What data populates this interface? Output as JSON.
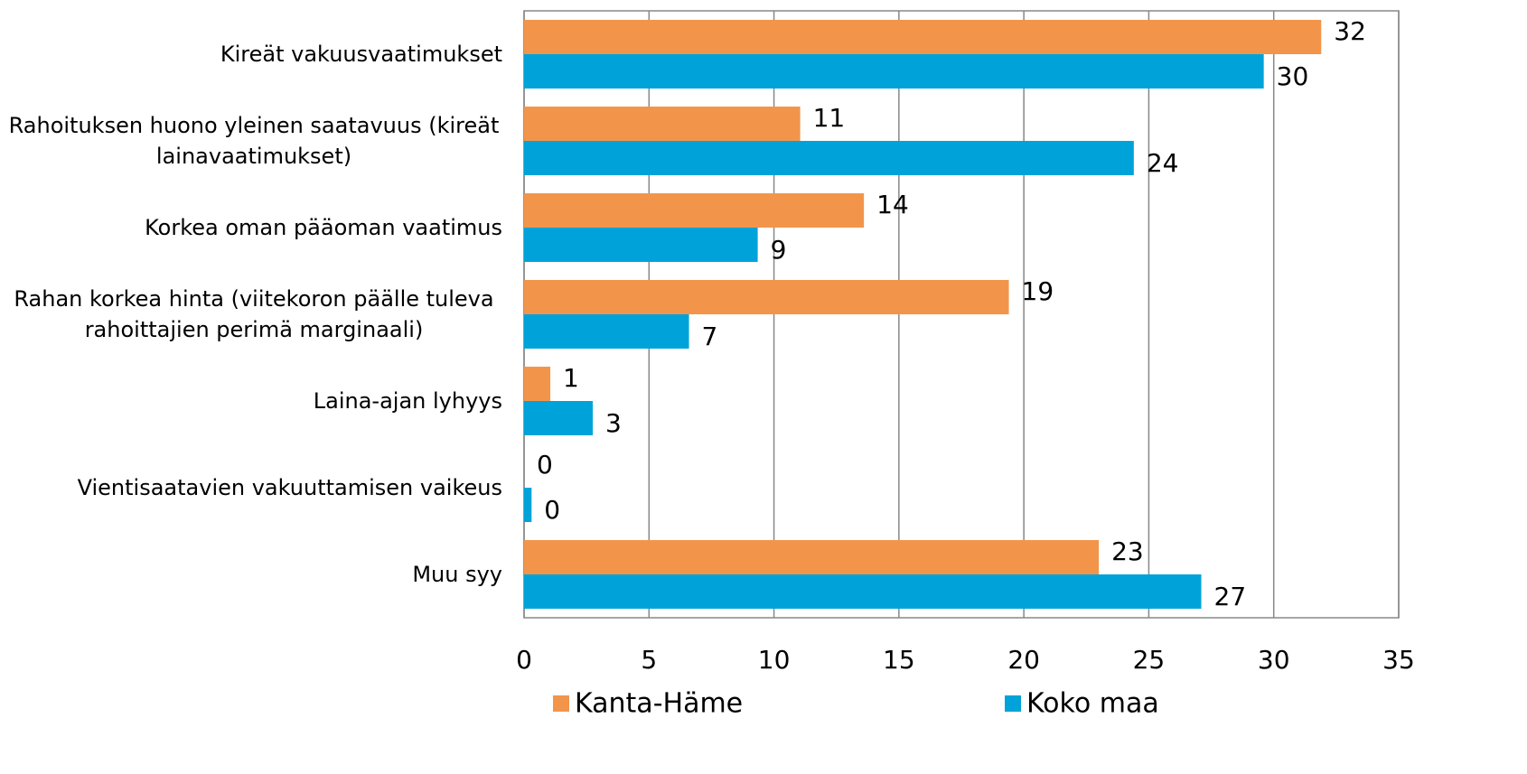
{
  "chart_data": {
    "type": "barh",
    "categories": [
      "Kireät vakuusvaatimukset",
      "Rahoituksen huono yleinen saatavuus (kireät lainavaatimukset)",
      "Korkea oman pääoman vaatimus",
      "Rahan korkea hinta (viitekoron päälle tuleva rahoittajien perimä marginaali)",
      "Laina-ajan lyhyys",
      "Vientisaatavien vakuuttamisen vaikeus",
      "Muu syy"
    ],
    "series": [
      {
        "name": "Kanta-Häme",
        "color": "#f2954b",
        "values": [
          31.9,
          11.05,
          13.6,
          19.4,
          1.05,
          0,
          23
        ],
        "value_labels": [
          "32",
          "11",
          "14",
          "19",
          "1",
          "0",
          "23"
        ]
      },
      {
        "name": "Koko maa",
        "color": "#00a3d9",
        "values": [
          29.6,
          24.4,
          9.35,
          6.6,
          2.75,
          0.3,
          27.1
        ],
        "value_labels": [
          "30",
          "24",
          "9",
          "7",
          "3",
          "0",
          "27"
        ]
      }
    ],
    "xlim": [
      0,
      35
    ],
    "xticks": [
      0,
      5,
      10,
      15,
      20,
      25,
      30,
      35
    ],
    "grid": true,
    "legend": "bottom"
  }
}
